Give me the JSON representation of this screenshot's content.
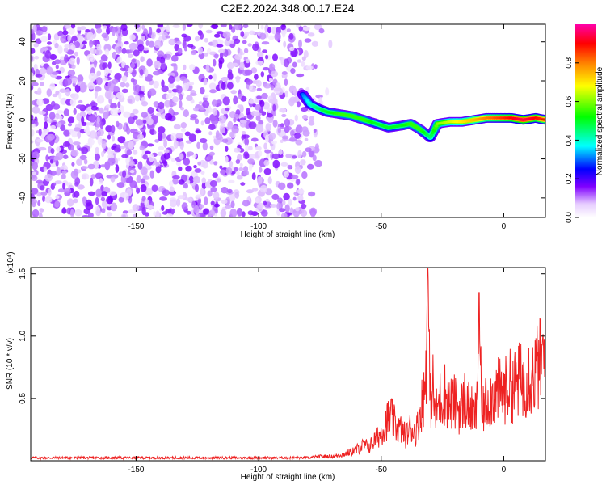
{
  "chart_data": [
    {
      "type": "heatmap",
      "title": "C2E2.2024.348.00.17.E24",
      "xlabel": "Height of straight line (km)",
      "ylabel": "Frequency (Hz)",
      "xlim": [
        -193,
        17
      ],
      "ylim": [
        -50,
        49
      ],
      "xticks": [
        -150,
        -100,
        -50,
        0
      ],
      "yticks": [
        -40,
        -20,
        0,
        20,
        40
      ],
      "colorbar": {
        "label": "Normalized spectral amplitude",
        "range": [
          0,
          1
        ],
        "ticks": [
          0.0,
          0.2,
          0.4,
          0.6,
          0.8
        ],
        "tick_labels": [
          "0.0",
          "0.2",
          "0.4",
          "0.6",
          "0.8"
        ],
        "colormap": [
          "#ffffff",
          "#d9b3ff",
          "#7b00ff",
          "#0000ff",
          "#00ffff",
          "#00ff00",
          "#ffff00",
          "#ff8000",
          "#ff0000",
          "#ff00aa"
        ]
      },
      "noise_region": {
        "x_end": -85,
        "x_fade_end": -70,
        "amplitude": [
          0.02,
          0.16
        ]
      },
      "signal_track": [
        {
          "x": -82,
          "y": 13,
          "amp": 0.3
        },
        {
          "x": -79,
          "y": 8,
          "amp": 0.4
        },
        {
          "x": -76,
          "y": 6,
          "amp": 0.45
        },
        {
          "x": -72,
          "y": 4,
          "amp": 0.5
        },
        {
          "x": -67,
          "y": 3,
          "amp": 0.55
        },
        {
          "x": -62,
          "y": 2,
          "amp": 0.55
        },
        {
          "x": -57,
          "y": 0,
          "amp": 0.55
        },
        {
          "x": -52,
          "y": -2,
          "amp": 0.5
        },
        {
          "x": -47,
          "y": -4,
          "amp": 0.5
        },
        {
          "x": -42,
          "y": -3,
          "amp": 0.5
        },
        {
          "x": -38,
          "y": -2,
          "amp": 0.55
        },
        {
          "x": -34,
          "y": -5,
          "amp": 0.55
        },
        {
          "x": -30,
          "y": -9,
          "amp": 0.45
        },
        {
          "x": -27,
          "y": -2,
          "amp": 0.6
        },
        {
          "x": -22,
          "y": -1,
          "amp": 0.65
        },
        {
          "x": -17,
          "y": -1,
          "amp": 0.7
        },
        {
          "x": -12,
          "y": 0,
          "amp": 0.75
        },
        {
          "x": -7,
          "y": 1,
          "amp": 0.8
        },
        {
          "x": -2,
          "y": 1,
          "amp": 0.85
        },
        {
          "x": 3,
          "y": 1,
          "amp": 0.9
        },
        {
          "x": 8,
          "y": 0,
          "amp": 0.95
        },
        {
          "x": 13,
          "y": 1,
          "amp": 0.9
        },
        {
          "x": 17,
          "y": 0,
          "amp": 0.85
        }
      ]
    },
    {
      "type": "line",
      "title": "",
      "xlabel": "Height of straight line (km)",
      "ylabel": "SNR (10 * v/v)",
      "y_multiplier_label": "(x10⁴)",
      "xlim": [
        -193,
        17
      ],
      "ylim": [
        0,
        1.55
      ],
      "xticks": [
        -150,
        -100,
        -50,
        0
      ],
      "yticks": [
        0.5,
        1.0,
        1.5
      ],
      "ytick_labels": [
        "0.5",
        "1.0",
        "1.5"
      ],
      "line_color": "#ee2222",
      "series": [
        {
          "x": [
            -193,
            -180,
            -170,
            -160,
            -150,
            -140,
            -130,
            -120,
            -110,
            -100,
            -90,
            -80,
            -75,
            -70,
            -65,
            -62,
            -60,
            -57,
            -55,
            -52,
            -50,
            -48,
            -46,
            -44,
            -42,
            -40,
            -38,
            -36,
            -35,
            -34,
            -33,
            -32,
            -31,
            -30,
            -29,
            -28,
            -26,
            -24,
            -22,
            -20,
            -18,
            -16,
            -14,
            -12,
            -11,
            -10,
            -9,
            -8,
            -6,
            -4,
            -2,
            0,
            2,
            4,
            6,
            8,
            10,
            12,
            14,
            16,
            17
          ],
          "y": [
            0.02,
            0.02,
            0.02,
            0.02,
            0.02,
            0.02,
            0.02,
            0.02,
            0.02,
            0.02,
            0.02,
            0.02,
            0.03,
            0.03,
            0.05,
            0.07,
            0.1,
            0.14,
            0.12,
            0.2,
            0.25,
            0.35,
            0.4,
            0.3,
            0.28,
            0.22,
            0.3,
            0.25,
            0.32,
            0.45,
            0.55,
            0.65,
            1.58,
            0.5,
            0.7,
            0.4,
            0.55,
            0.6,
            0.5,
            0.52,
            0.45,
            0.55,
            0.48,
            0.4,
            0.45,
            1.35,
            0.35,
            0.5,
            0.55,
            0.6,
            0.62,
            0.6,
            0.68,
            0.65,
            0.72,
            0.7,
            0.78,
            0.75,
            0.85,
            0.88,
            0.9
          ]
        }
      ]
    }
  ]
}
